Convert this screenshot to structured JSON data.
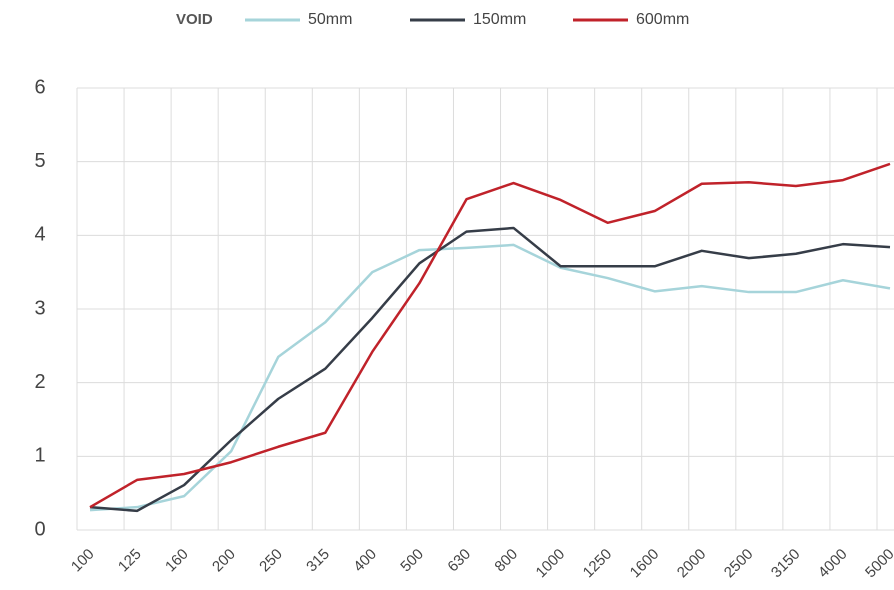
{
  "chart_data": {
    "type": "line",
    "legend_title": "VOID",
    "legend": "top",
    "categories": [
      "100",
      "125",
      "160",
      "200",
      "250",
      "315",
      "400",
      "500",
      "630",
      "800",
      "1000",
      "1250",
      "1600",
      "2000",
      "2500",
      "3150",
      "4000",
      "5000"
    ],
    "series": [
      {
        "name": "50mm",
        "color": "#a6d4da",
        "values": [
          0.27,
          0.31,
          0.46,
          1.07,
          2.35,
          2.82,
          3.5,
          3.8,
          3.83,
          3.87,
          3.56,
          3.42,
          3.24,
          3.31,
          3.23,
          3.23,
          3.39,
          3.28
        ]
      },
      {
        "name": "150mm",
        "color": "#363d48",
        "values": [
          0.31,
          0.26,
          0.61,
          1.22,
          1.78,
          2.19,
          2.88,
          3.62,
          4.05,
          4.1,
          3.58,
          3.58,
          3.58,
          3.79,
          3.69,
          3.75,
          3.88,
          3.84
        ]
      },
      {
        "name": "600mm",
        "color": "#c0222a",
        "values": [
          0.31,
          0.68,
          0.76,
          0.92,
          1.13,
          1.32,
          2.42,
          3.35,
          4.49,
          4.71,
          4.48,
          4.17,
          4.33,
          4.7,
          4.72,
          4.67,
          4.75,
          4.97
        ]
      }
    ],
    "ylim": [
      0,
      6
    ],
    "yticks": [
      0,
      1,
      2,
      3,
      4,
      5,
      6
    ],
    "grid": true
  }
}
